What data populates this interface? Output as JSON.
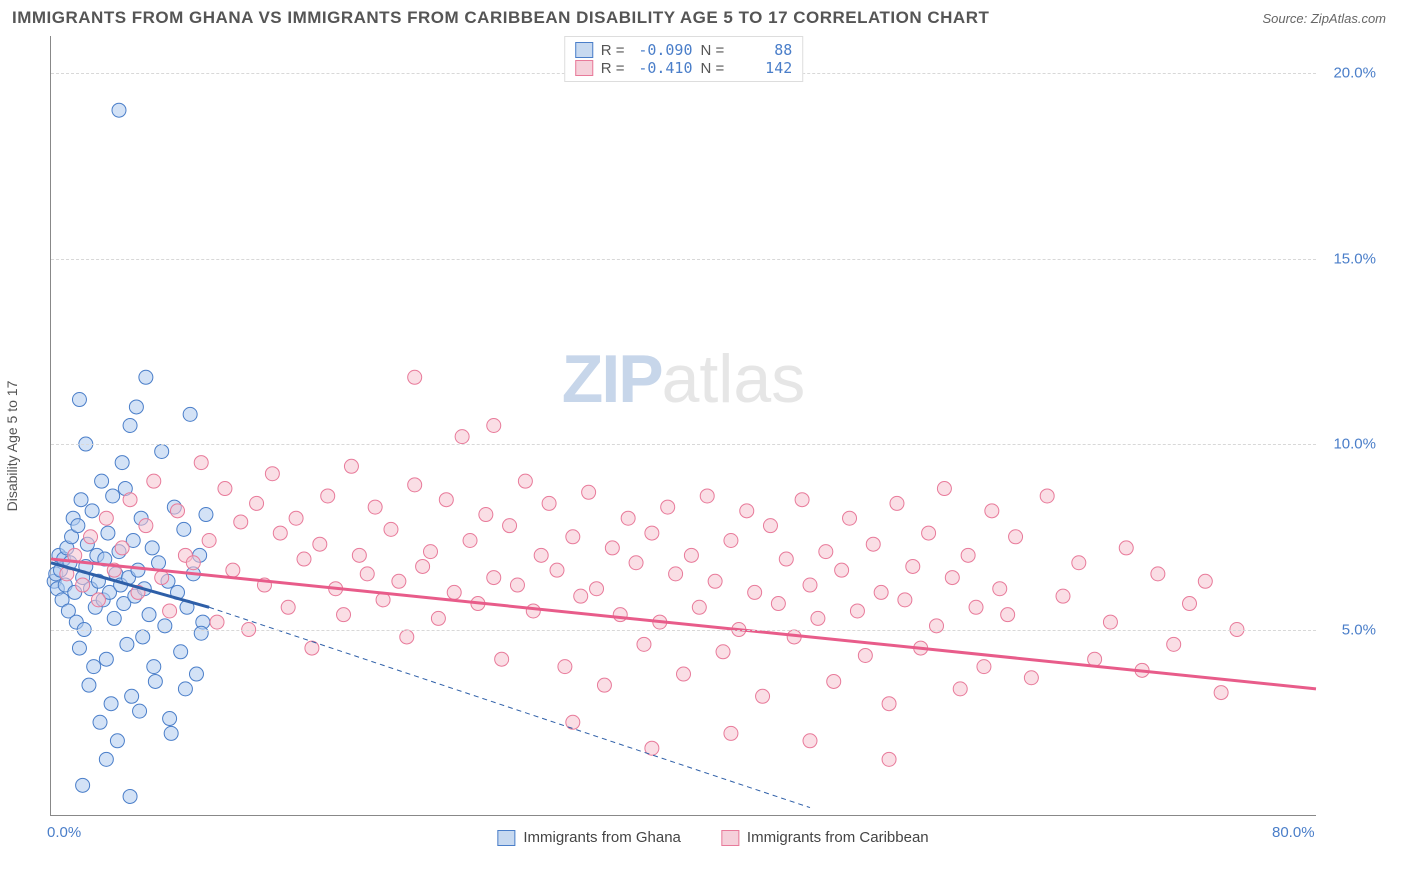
{
  "header": {
    "title": "IMMIGRANTS FROM GHANA VS IMMIGRANTS FROM CARIBBEAN DISABILITY AGE 5 TO 17 CORRELATION CHART",
    "source": "Source: ZipAtlas.com"
  },
  "chart": {
    "type": "scatter",
    "y_axis_label": "Disability Age 5 to 17",
    "watermark_a": "ZIP",
    "watermark_b": "atlas",
    "xlim": [
      0,
      80
    ],
    "ylim": [
      0,
      21
    ],
    "x_ticks": [
      {
        "v": 0,
        "label": "0.0%"
      },
      {
        "v": 80,
        "label": "80.0%"
      }
    ],
    "y_ticks": [
      {
        "v": 5,
        "label": "5.0%"
      },
      {
        "v": 10,
        "label": "10.0%"
      },
      {
        "v": 15,
        "label": "15.0%"
      },
      {
        "v": 20,
        "label": "20.0%"
      }
    ],
    "grid_color": "#d8d8d8",
    "background_color": "#ffffff",
    "series": [
      {
        "id": "ghana",
        "name": "Immigrants from Ghana",
        "marker_fill": "#aecbef",
        "marker_stroke": "#4a7ec9",
        "marker_fill_opacity": 0.55,
        "marker_radius": 7,
        "swatch_fill": "#c7d9f0",
        "swatch_stroke": "#4a7ec9",
        "R": "-0.090",
        "N": "88",
        "trend": {
          "x1": 0,
          "y1": 6.8,
          "x2": 10,
          "y2": 5.6,
          "stroke": "#2e5fa8",
          "width": 3
        },
        "trend_ext": {
          "x1": 10,
          "y1": 5.6,
          "x2": 48,
          "y2": 0.2,
          "stroke": "#2e5fa8",
          "width": 1,
          "dash": "5,4"
        },
        "points": [
          [
            0.2,
            6.3
          ],
          [
            0.3,
            6.5
          ],
          [
            0.4,
            6.1
          ],
          [
            0.5,
            7.0
          ],
          [
            0.6,
            6.6
          ],
          [
            0.7,
            5.8
          ],
          [
            0.8,
            6.9
          ],
          [
            0.9,
            6.2
          ],
          [
            1.0,
            7.2
          ],
          [
            1.1,
            5.5
          ],
          [
            1.2,
            6.8
          ],
          [
            1.3,
            7.5
          ],
          [
            1.4,
            8.0
          ],
          [
            1.5,
            6.0
          ],
          [
            1.6,
            5.2
          ],
          [
            1.7,
            7.8
          ],
          [
            1.8,
            4.5
          ],
          [
            1.9,
            8.5
          ],
          [
            2.0,
            6.4
          ],
          [
            2.1,
            5.0
          ],
          [
            2.2,
            6.7
          ],
          [
            2.3,
            7.3
          ],
          [
            2.4,
            3.5
          ],
          [
            2.5,
            6.1
          ],
          [
            2.6,
            8.2
          ],
          [
            2.7,
            4.0
          ],
          [
            2.8,
            5.6
          ],
          [
            2.9,
            7.0
          ],
          [
            3.0,
            6.3
          ],
          [
            3.1,
            2.5
          ],
          [
            3.2,
            9.0
          ],
          [
            3.3,
            5.8
          ],
          [
            3.4,
            6.9
          ],
          [
            3.5,
            4.2
          ],
          [
            3.6,
            7.6
          ],
          [
            3.7,
            6.0
          ],
          [
            3.8,
            3.0
          ],
          [
            3.9,
            8.6
          ],
          [
            4.0,
            5.3
          ],
          [
            4.1,
            6.5
          ],
          [
            4.2,
            2.0
          ],
          [
            4.3,
            7.1
          ],
          [
            4.4,
            6.2
          ],
          [
            4.5,
            9.5
          ],
          [
            4.6,
            5.7
          ],
          [
            4.7,
            8.8
          ],
          [
            4.8,
            4.6
          ],
          [
            4.9,
            6.4
          ],
          [
            5.0,
            10.5
          ],
          [
            5.1,
            3.2
          ],
          [
            5.2,
            7.4
          ],
          [
            5.3,
            5.9
          ],
          [
            5.4,
            11.0
          ],
          [
            5.5,
            6.6
          ],
          [
            5.6,
            2.8
          ],
          [
            5.7,
            8.0
          ],
          [
            5.8,
            4.8
          ],
          [
            5.9,
            6.1
          ],
          [
            6.0,
            11.8
          ],
          [
            6.2,
            5.4
          ],
          [
            6.4,
            7.2
          ],
          [
            6.6,
            3.6
          ],
          [
            6.8,
            6.8
          ],
          [
            7.0,
            9.8
          ],
          [
            7.2,
            5.1
          ],
          [
            7.4,
            6.3
          ],
          [
            7.6,
            2.2
          ],
          [
            7.8,
            8.3
          ],
          [
            8.0,
            6.0
          ],
          [
            8.2,
            4.4
          ],
          [
            8.4,
            7.7
          ],
          [
            8.6,
            5.6
          ],
          [
            8.8,
            10.8
          ],
          [
            9.0,
            6.5
          ],
          [
            9.2,
            3.8
          ],
          [
            9.4,
            7.0
          ],
          [
            9.6,
            5.2
          ],
          [
            9.8,
            8.1
          ],
          [
            4.3,
            19.0
          ],
          [
            2.0,
            0.8
          ],
          [
            3.5,
            1.5
          ],
          [
            5.0,
            0.5
          ],
          [
            1.8,
            11.2
          ],
          [
            2.2,
            10.0
          ],
          [
            6.5,
            4.0
          ],
          [
            7.5,
            2.6
          ],
          [
            8.5,
            3.4
          ],
          [
            9.5,
            4.9
          ]
        ]
      },
      {
        "id": "caribbean",
        "name": "Immigrants from Caribbean",
        "marker_fill": "#f5c3d0",
        "marker_stroke": "#e87a9a",
        "marker_fill_opacity": 0.55,
        "marker_radius": 7,
        "swatch_fill": "#f5d0da",
        "swatch_stroke": "#e87a9a",
        "R": "-0.410",
        "N": "142",
        "trend": {
          "x1": 0,
          "y1": 6.9,
          "x2": 80,
          "y2": 3.4,
          "stroke": "#e85c8a",
          "width": 3
        },
        "points": [
          [
            1,
            6.5
          ],
          [
            1.5,
            7.0
          ],
          [
            2,
            6.2
          ],
          [
            2.5,
            7.5
          ],
          [
            3,
            5.8
          ],
          [
            3.5,
            8.0
          ],
          [
            4,
            6.6
          ],
          [
            4.5,
            7.2
          ],
          [
            5,
            8.5
          ],
          [
            5.5,
            6.0
          ],
          [
            6,
            7.8
          ],
          [
            6.5,
            9.0
          ],
          [
            7,
            6.4
          ],
          [
            7.5,
            5.5
          ],
          [
            8,
            8.2
          ],
          [
            8.5,
            7.0
          ],
          [
            9,
            6.8
          ],
          [
            9.5,
            9.5
          ],
          [
            10,
            7.4
          ],
          [
            10.5,
            5.2
          ],
          [
            11,
            8.8
          ],
          [
            11.5,
            6.6
          ],
          [
            12,
            7.9
          ],
          [
            12.5,
            5.0
          ],
          [
            13,
            8.4
          ],
          [
            13.5,
            6.2
          ],
          [
            14,
            9.2
          ],
          [
            14.5,
            7.6
          ],
          [
            15,
            5.6
          ],
          [
            15.5,
            8.0
          ],
          [
            16,
            6.9
          ],
          [
            16.5,
            4.5
          ],
          [
            17,
            7.3
          ],
          [
            17.5,
            8.6
          ],
          [
            18,
            6.1
          ],
          [
            18.5,
            5.4
          ],
          [
            19,
            9.4
          ],
          [
            19.5,
            7.0
          ],
          [
            20,
            6.5
          ],
          [
            20.5,
            8.3
          ],
          [
            21,
            5.8
          ],
          [
            21.5,
            7.7
          ],
          [
            22,
            6.3
          ],
          [
            22.5,
            4.8
          ],
          [
            23,
            8.9
          ],
          [
            23.5,
            6.7
          ],
          [
            24,
            7.1
          ],
          [
            24.5,
            5.3
          ],
          [
            25,
            8.5
          ],
          [
            25.5,
            6.0
          ],
          [
            26,
            10.2
          ],
          [
            26.5,
            7.4
          ],
          [
            27,
            5.7
          ],
          [
            27.5,
            8.1
          ],
          [
            28,
            6.4
          ],
          [
            28.5,
            4.2
          ],
          [
            29,
            7.8
          ],
          [
            29.5,
            6.2
          ],
          [
            30,
            9.0
          ],
          [
            30.5,
            5.5
          ],
          [
            31,
            7.0
          ],
          [
            31.5,
            8.4
          ],
          [
            32,
            6.6
          ],
          [
            32.5,
            4.0
          ],
          [
            33,
            7.5
          ],
          [
            33.5,
            5.9
          ],
          [
            34,
            8.7
          ],
          [
            34.5,
            6.1
          ],
          [
            35,
            3.5
          ],
          [
            35.5,
            7.2
          ],
          [
            36,
            5.4
          ],
          [
            36.5,
            8.0
          ],
          [
            37,
            6.8
          ],
          [
            37.5,
            4.6
          ],
          [
            38,
            7.6
          ],
          [
            38.5,
            5.2
          ],
          [
            39,
            8.3
          ],
          [
            39.5,
            6.5
          ],
          [
            40,
            3.8
          ],
          [
            40.5,
            7.0
          ],
          [
            41,
            5.6
          ],
          [
            41.5,
            8.6
          ],
          [
            42,
            6.3
          ],
          [
            42.5,
            4.4
          ],
          [
            43,
            7.4
          ],
          [
            43.5,
            5.0
          ],
          [
            44,
            8.2
          ],
          [
            44.5,
            6.0
          ],
          [
            45,
            3.2
          ],
          [
            45.5,
            7.8
          ],
          [
            46,
            5.7
          ],
          [
            46.5,
            6.9
          ],
          [
            47,
            4.8
          ],
          [
            47.5,
            8.5
          ],
          [
            48,
            6.2
          ],
          [
            48.5,
            5.3
          ],
          [
            49,
            7.1
          ],
          [
            49.5,
            3.6
          ],
          [
            50,
            6.6
          ],
          [
            50.5,
            8.0
          ],
          [
            51,
            5.5
          ],
          [
            51.5,
            4.3
          ],
          [
            52,
            7.3
          ],
          [
            52.5,
            6.0
          ],
          [
            53,
            3.0
          ],
          [
            53.5,
            8.4
          ],
          [
            54,
            5.8
          ],
          [
            54.5,
            6.7
          ],
          [
            55,
            4.5
          ],
          [
            55.5,
            7.6
          ],
          [
            56,
            5.1
          ],
          [
            56.5,
            8.8
          ],
          [
            57,
            6.4
          ],
          [
            57.5,
            3.4
          ],
          [
            58,
            7.0
          ],
          [
            58.5,
            5.6
          ],
          [
            59,
            4.0
          ],
          [
            59.5,
            8.2
          ],
          [
            60,
            6.1
          ],
          [
            60.5,
            5.4
          ],
          [
            61,
            7.5
          ],
          [
            62,
            3.7
          ],
          [
            63,
            8.6
          ],
          [
            64,
            5.9
          ],
          [
            65,
            6.8
          ],
          [
            66,
            4.2
          ],
          [
            67,
            5.2
          ],
          [
            68,
            7.2
          ],
          [
            69,
            3.9
          ],
          [
            70,
            6.5
          ],
          [
            71,
            4.6
          ],
          [
            72,
            5.7
          ],
          [
            73,
            6.3
          ],
          [
            74,
            3.3
          ],
          [
            75,
            5.0
          ],
          [
            23,
            11.8
          ],
          [
            28,
            10.5
          ],
          [
            33,
            2.5
          ],
          [
            38,
            1.8
          ],
          [
            43,
            2.2
          ],
          [
            48,
            2.0
          ],
          [
            53,
            1.5
          ]
        ]
      }
    ],
    "legend_top_labels": {
      "R": "R =",
      "N": "N ="
    }
  },
  "bottom_legend": {
    "items": [
      {
        "key": "ghana"
      },
      {
        "key": "caribbean"
      }
    ]
  }
}
